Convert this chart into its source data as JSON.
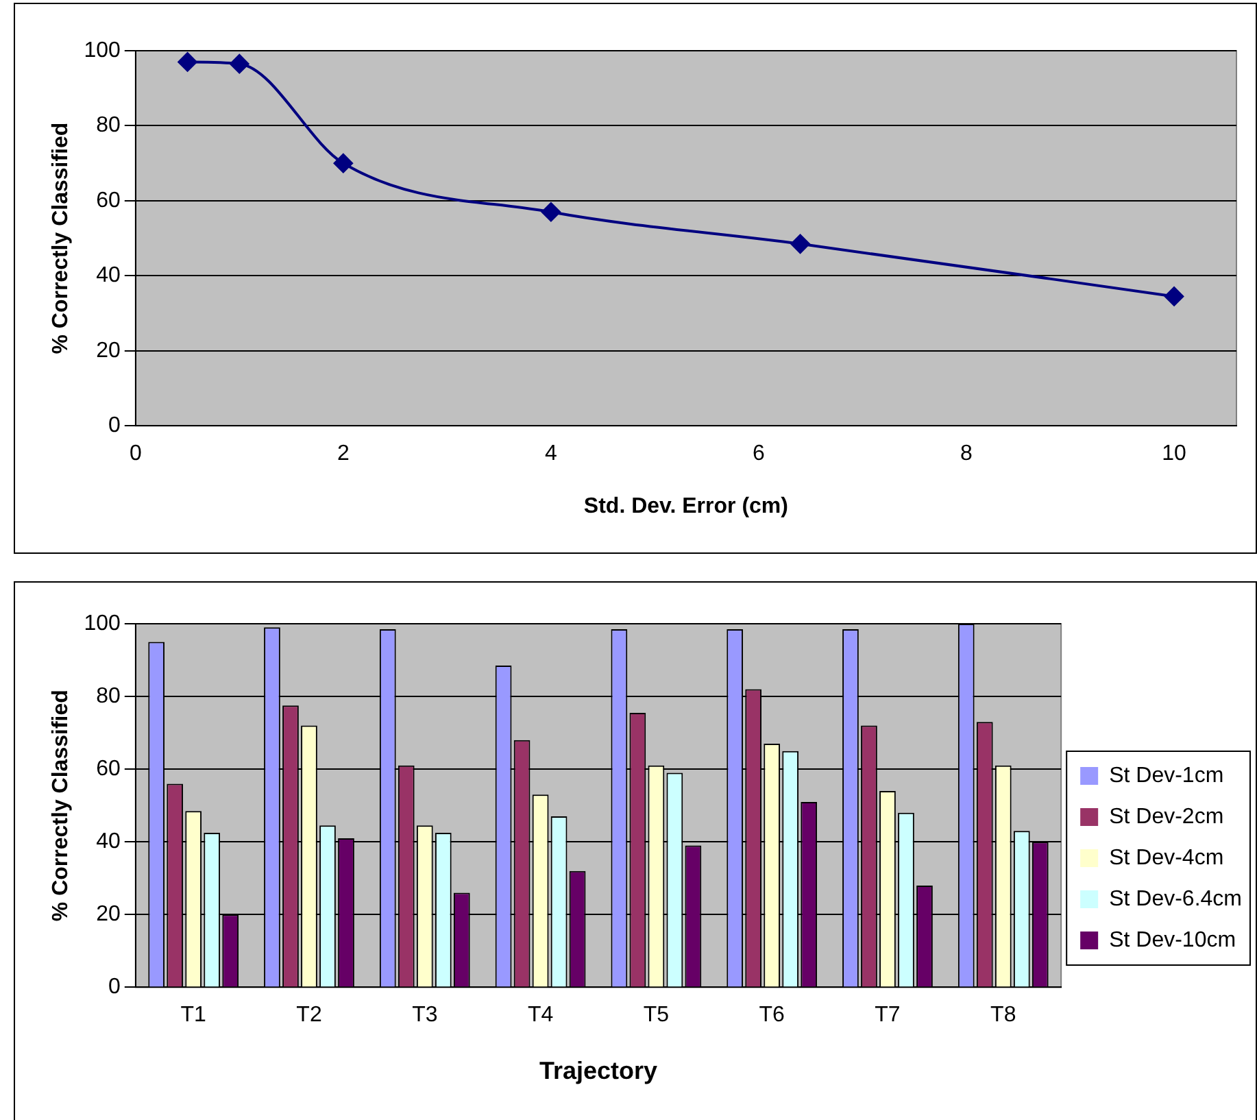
{
  "chart_data": [
    {
      "type": "line",
      "xlabel": "Std. Dev. Error (cm)",
      "ylabel": "% Correctly Classified",
      "x": [
        0.5,
        1,
        2,
        4,
        6.4,
        10
      ],
      "series": [
        {
          "color": "#000080",
          "values": [
            97,
            96.5,
            70,
            57,
            48.5,
            34.5
          ]
        }
      ],
      "xlim": [
        0,
        10.6
      ],
      "xticks": [
        0,
        2,
        4,
        6,
        8,
        10
      ],
      "ylim": [
        0,
        100
      ],
      "yticks": [
        0,
        20,
        40,
        60,
        80,
        100
      ],
      "grid": "y",
      "marker": "diamond",
      "legend": false
    },
    {
      "type": "bar",
      "xlabel": "Trajectory",
      "ylabel": "% Correctly Classified",
      "categories": [
        "T1",
        "T2",
        "T3",
        "T4",
        "T5",
        "T6",
        "T7",
        "T8"
      ],
      "series": [
        {
          "name": "St Dev-1cm",
          "color": "#9999ff",
          "values": [
            95,
            99,
            98.5,
            88.5,
            98.5,
            98.5,
            98.5,
            100
          ]
        },
        {
          "name": "St Dev-2cm",
          "color": "#993366",
          "values": [
            56,
            77.5,
            61,
            68,
            75.5,
            82,
            72,
            73
          ]
        },
        {
          "name": "St Dev-4cm",
          "color": "#ffffcc",
          "values": [
            48.5,
            72,
            44.5,
            53,
            61,
            67,
            54,
            61
          ]
        },
        {
          "name": "St Dev-6.4cm",
          "color": "#ccffff",
          "values": [
            42.5,
            44.5,
            42.5,
            47,
            59,
            65,
            48,
            43
          ]
        },
        {
          "name": "St Dev-10cm",
          "color": "#660066",
          "values": [
            20,
            41,
            26,
            32,
            39,
            51,
            28,
            40
          ]
        }
      ],
      "ylim": [
        0,
        100
      ],
      "yticks": [
        0,
        20,
        40,
        60,
        80,
        100
      ],
      "grid": "y",
      "legend": "right"
    }
  ]
}
